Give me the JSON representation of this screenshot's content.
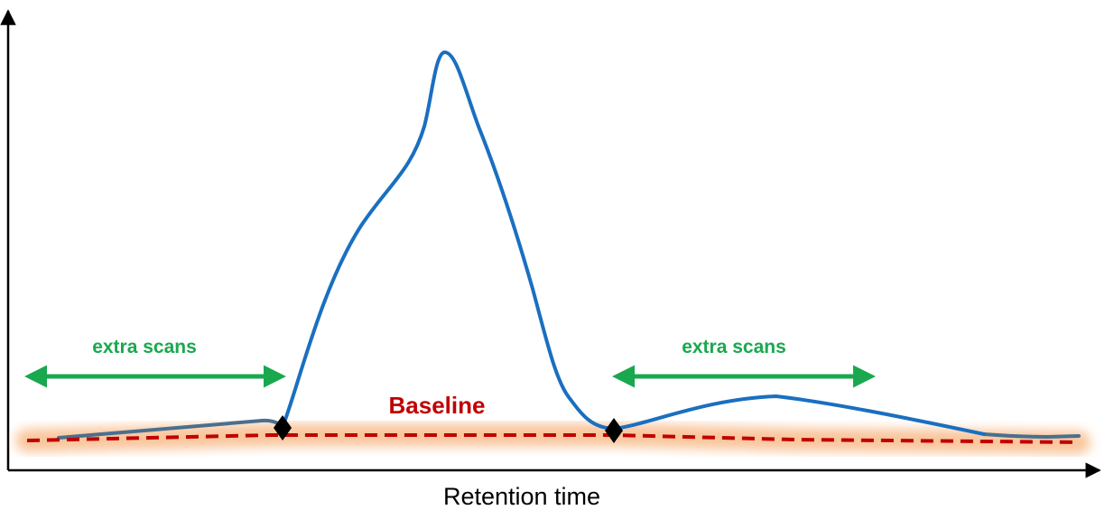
{
  "axis": {
    "x_label": "Retention time"
  },
  "labels": {
    "extra_scans_left": "extra scans",
    "extra_scans_right": "extra scans",
    "baseline": "Baseline"
  },
  "colors": {
    "signal": "#1a6fc0",
    "signal_outside": "#4a6f8f",
    "baseline": "#c00000",
    "baseline_glow": "#f7b27a",
    "arrow": "#1aa84f",
    "label_green": "#1aa84f",
    "label_red": "#c00000",
    "axis": "#000000",
    "marker": "#000000"
  },
  "elements": {
    "markers": [
      "peak-start-marker",
      "peak-end-marker"
    ],
    "icons": [
      "double-headed-arrow-icon",
      "diamond-marker-icon"
    ]
  }
}
